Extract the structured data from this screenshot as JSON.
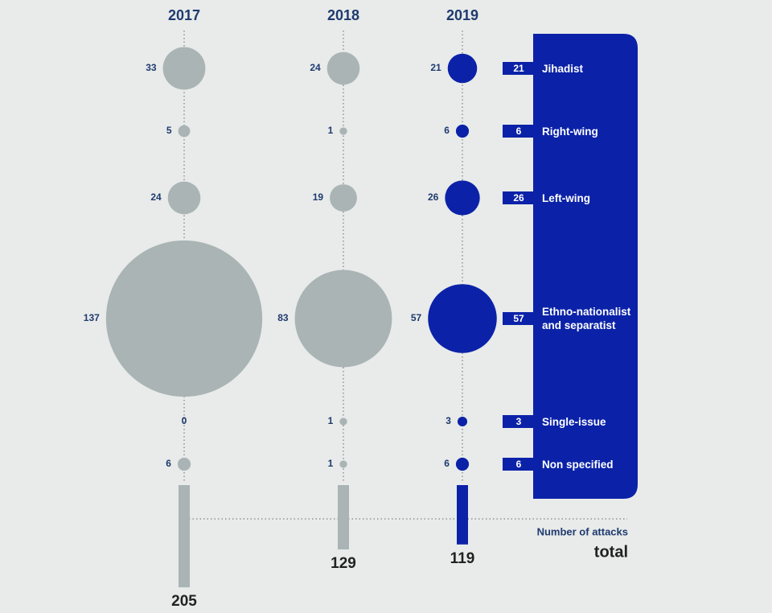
{
  "chart_data": {
    "type": "bubble",
    "categories": [
      "Jihadist",
      "Right-wing",
      "Left-wing",
      "Ethno-nationalist and separatist",
      "Single-issue",
      "Non specified"
    ],
    "series": [
      {
        "name": "2017",
        "color": "#aab4b4",
        "values": [
          33,
          5,
          24,
          137,
          0,
          6
        ]
      },
      {
        "name": "2018",
        "color": "#aab4b4",
        "values": [
          24,
          1,
          19,
          83,
          1,
          1
        ]
      },
      {
        "name": "2019",
        "color": "#0b22a8",
        "values": [
          21,
          6,
          26,
          57,
          3,
          6
        ]
      }
    ],
    "totals": [
      205,
      129,
      119
    ],
    "totals_label": "Number of attacks",
    "totals_title": "total"
  }
}
